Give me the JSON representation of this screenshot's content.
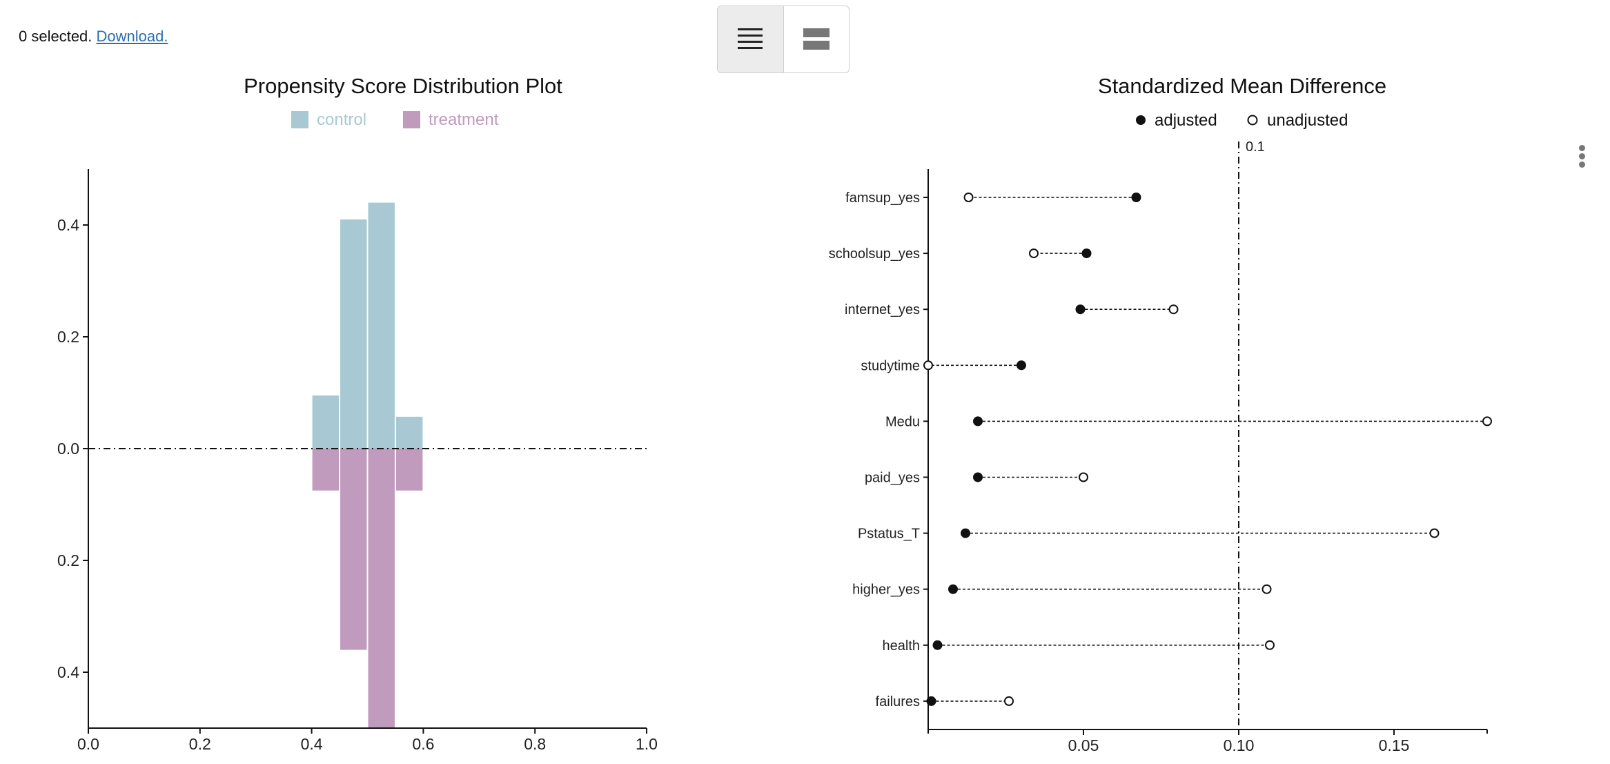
{
  "status": {
    "selected_text": "0 selected.",
    "download_label": "Download."
  },
  "view_toggle": {
    "options": [
      "list-view-icon",
      "stacked-view-icon"
    ],
    "active": 0
  },
  "menu": {
    "icon": "more-vertical-icon"
  },
  "colors": {
    "control": "#a8c9d3",
    "treatment": "#c19bbe",
    "axis": "#111111"
  },
  "chart_data": [
    {
      "type": "bar",
      "title": "Propensity Score Distribution Plot",
      "legend": [
        {
          "name": "control",
          "color": "#a8c9d3"
        },
        {
          "name": "treatment",
          "color": "#c19bbe"
        }
      ],
      "legend_placement": "top-center",
      "xlim": [
        0.0,
        1.0
      ],
      "ylim": [
        -0.5,
        0.5
      ],
      "x_ticks": [
        "0.0",
        "0.2",
        "0.4",
        "0.6",
        "0.8",
        "1.0"
      ],
      "y_ticks": [
        "0.4",
        "0.2",
        "0.0",
        "0.2",
        "0.4"
      ],
      "bins": [
        {
          "x0": 0.4,
          "x1": 0.45,
          "control": 0.095,
          "treatment": 0.075
        },
        {
          "x0": 0.45,
          "x1": 0.5,
          "control": 0.41,
          "treatment": 0.36
        },
        {
          "x0": 0.5,
          "x1": 0.55,
          "control": 0.44,
          "treatment": 0.5
        },
        {
          "x0": 0.55,
          "x1": 0.6,
          "control": 0.057,
          "treatment": 0.075
        }
      ],
      "baseline": 0.0,
      "grid": false
    },
    {
      "type": "scatter",
      "title": "Standardized Mean Difference",
      "legend": [
        {
          "name": "adjusted",
          "marker": "filled"
        },
        {
          "name": "unadjusted",
          "marker": "open"
        }
      ],
      "legend_placement": "top-center",
      "xlim": [
        0.0,
        0.18
      ],
      "x_ticks": [
        "0.05",
        "0.10",
        "0.15"
      ],
      "threshold": {
        "value": 0.1,
        "label": "0.1"
      },
      "covariates": [
        "famsup_yes",
        "schoolsup_yes",
        "internet_yes",
        "studytime",
        "Medu",
        "paid_yes",
        "Pstatus_T",
        "higher_yes",
        "health",
        "failures"
      ],
      "adjusted": [
        0.067,
        0.051,
        0.049,
        0.03,
        0.016,
        0.016,
        0.012,
        0.008,
        0.003,
        0.001
      ],
      "unadjusted": [
        0.013,
        0.034,
        0.079,
        0.0,
        0.18,
        0.05,
        0.163,
        0.109,
        0.11,
        0.026
      ],
      "grid": false
    }
  ]
}
